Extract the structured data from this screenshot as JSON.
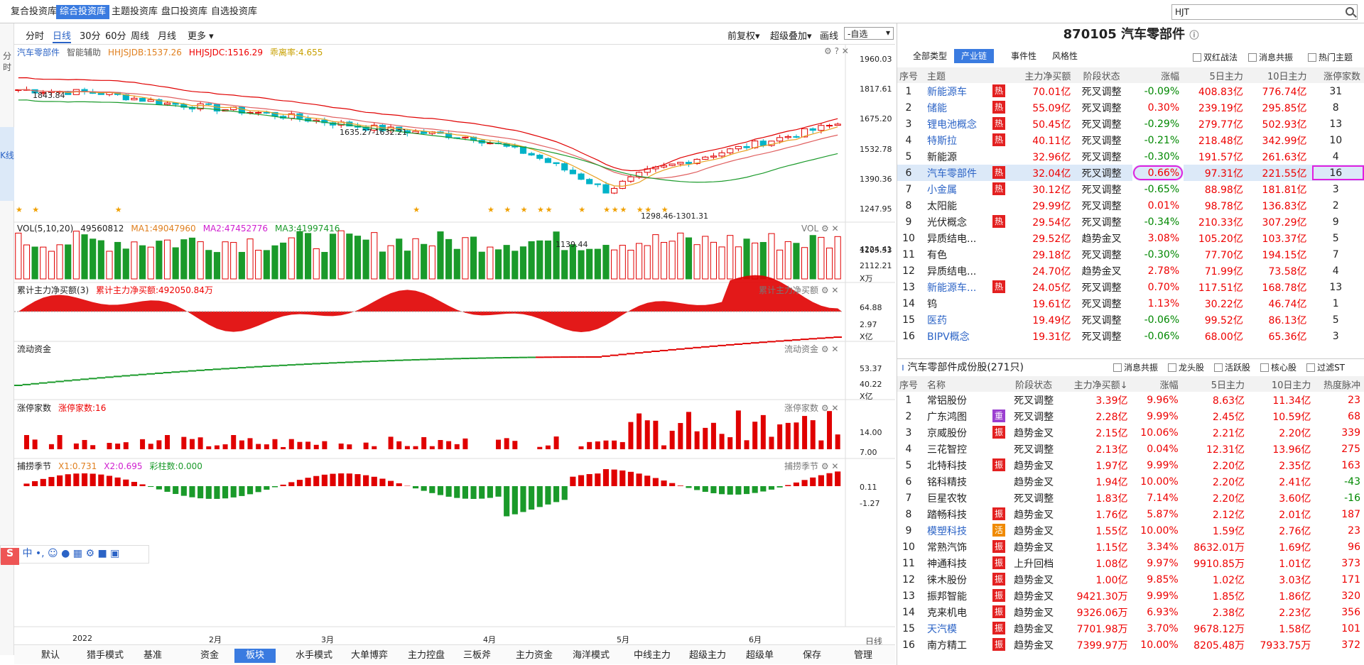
{
  "top_tabs": [
    "复合投资库",
    "综合投资库",
    "主题投资库",
    "盘口投资库",
    "自选投资库"
  ],
  "search_value": "HJT",
  "left_rail": {
    "fenshi": "分时",
    "kxian": "K线"
  },
  "period_tabs": [
    "分时",
    "日线",
    "30分",
    "60分",
    "周线",
    "月线",
    "更多"
  ],
  "period_right": [
    "前复权",
    "超级叠加",
    "画线",
    "-自选"
  ],
  "main_panel": {
    "name": "汽车零部件",
    "fuzhu": "智能辅助",
    "hhjsjdb": "HHJSJDB:1537.26",
    "hhjsjdc": "HHJSJDC:1516.29",
    "pianli": "乖离率:4.655",
    "yaxis": [
      "1960.03",
      "1817.61",
      "1675.20",
      "1532.78",
      "1390.36",
      "1247.95",
      "1105.53"
    ],
    "annot_high": "1843.84",
    "annot_mid": "1635.27-1632.21",
    "annot_low1": "1298.46-1301.31",
    "annot_low2": "1139.44"
  },
  "vol_panel": {
    "title": "VOL(5,10,20)",
    "v": "49560812",
    "ma1": "MA1:49047960",
    "ma2": "MA2:47452776",
    "ma3": "MA3:41997416",
    "y1": "4224.41",
    "y2": "2112.21",
    "unit": "X万",
    "tag": "VOL"
  },
  "cum_panel": {
    "title": "累计主力净买额(3)",
    "value": "累计主力净买额:492050.84万",
    "tag": "累计主力净买额",
    "y1": "64.88",
    "y2": "2.97",
    "unit": "X亿"
  },
  "flow_panel": {
    "title": "流动资金",
    "tag": "流动资金",
    "y1": "53.37",
    "y2": "40.22",
    "unit": "X亿"
  },
  "limit_panel": {
    "title": "涨停家数",
    "value": "涨停家数:16",
    "tag": "涨停家数",
    "y1": "14.00",
    "y2": "7.00"
  },
  "catch_panel": {
    "title": "捕捞季节",
    "x1": "X1:0.731",
    "x2": "X2:0.695",
    "bar": "彩柱数:0.000",
    "tag": "捕捞季节",
    "y1": "0.11",
    "y2": "-1.27"
  },
  "xaxis": [
    "2022",
    "2月",
    "3月",
    "4月",
    "5月",
    "6月"
  ],
  "bottom_tabs": [
    "默认",
    "猎手模式",
    "基准",
    "资金",
    "板块",
    "水手模式",
    "大单博弈",
    "主力控盘",
    "三板斧",
    "主力资金",
    "海洋模式",
    "中线主力",
    "超级主力",
    "超级单",
    "保存",
    "管理"
  ],
  "daily_label": "日线",
  "stock_title": "870105 汽车零部件",
  "info_tabs": [
    "全部类型",
    "产业链",
    "事件性",
    "风格性"
  ],
  "info_checks": [
    "双红战法",
    "消息共振",
    "热门主题"
  ],
  "theme_cols": [
    "序号",
    "主题",
    "主力净买额",
    "阶段状态",
    "涨幅",
    "5日主力",
    "10日主力",
    "涨停家数"
  ],
  "themes": [
    {
      "n": "1",
      "name": "新能源车",
      "hot": true,
      "link": true,
      "net": "70.01亿",
      "stage": "死叉调整",
      "chg": "-0.09%",
      "d5": "408.83亿",
      "d10": "776.74亿",
      "limit": "31"
    },
    {
      "n": "2",
      "name": "储能",
      "hot": true,
      "link": true,
      "net": "55.09亿",
      "stage": "死叉调整",
      "chg": "0.30%",
      "d5": "239.19亿",
      "d10": "295.85亿",
      "limit": "8"
    },
    {
      "n": "3",
      "name": "锂电池概念",
      "hot": true,
      "link": true,
      "net": "50.45亿",
      "stage": "死叉调整",
      "chg": "-0.29%",
      "d5": "279.77亿",
      "d10": "502.93亿",
      "limit": "13"
    },
    {
      "n": "4",
      "name": "特斯拉",
      "hot": true,
      "link": true,
      "net": "40.11亿",
      "stage": "死叉调整",
      "chg": "-0.21%",
      "d5": "218.48亿",
      "d10": "342.99亿",
      "limit": "10"
    },
    {
      "n": "5",
      "name": "新能源",
      "hot": false,
      "link": false,
      "net": "32.96亿",
      "stage": "死叉调整",
      "chg": "-0.30%",
      "d5": "191.57亿",
      "d10": "261.63亿",
      "limit": "4"
    },
    {
      "n": "6",
      "name": "汽车零部件",
      "hot": true,
      "link": true,
      "net": "32.04亿",
      "stage": "死叉调整",
      "chg": "0.66%",
      "d5": "97.31亿",
      "d10": "221.55亿",
      "limit": "16",
      "sel": true
    },
    {
      "n": "7",
      "name": "小金属",
      "hot": true,
      "link": true,
      "net": "30.12亿",
      "stage": "死叉调整",
      "chg": "-0.65%",
      "d5": "88.98亿",
      "d10": "181.81亿",
      "limit": "3"
    },
    {
      "n": "8",
      "name": "太阳能",
      "hot": false,
      "link": false,
      "net": "29.99亿",
      "stage": "死叉调整",
      "chg": "0.01%",
      "d5": "98.78亿",
      "d10": "136.83亿",
      "limit": "2"
    },
    {
      "n": "9",
      "name": "光伏概念",
      "hot": true,
      "link": false,
      "net": "29.54亿",
      "stage": "死叉调整",
      "chg": "-0.34%",
      "d5": "210.33亿",
      "d10": "307.29亿",
      "limit": "9"
    },
    {
      "n": "10",
      "name": "异质结电...",
      "hot": false,
      "link": false,
      "net": "29.52亿",
      "stage": "趋势金叉",
      "chg": "3.08%",
      "d5": "105.20亿",
      "d10": "103.37亿",
      "limit": "5"
    },
    {
      "n": "11",
      "name": "有色",
      "hot": false,
      "link": false,
      "net": "29.18亿",
      "stage": "死叉调整",
      "chg": "-0.30%",
      "d5": "77.70亿",
      "d10": "194.15亿",
      "limit": "7"
    },
    {
      "n": "12",
      "name": "异质结电...",
      "hot": false,
      "link": false,
      "net": "24.70亿",
      "stage": "趋势金叉",
      "chg": "2.78%",
      "d5": "71.99亿",
      "d10": "73.58亿",
      "limit": "4"
    },
    {
      "n": "13",
      "name": "新能源车...",
      "hot": true,
      "link": true,
      "net": "24.05亿",
      "stage": "死叉调整",
      "chg": "0.70%",
      "d5": "117.51亿",
      "d10": "168.78亿",
      "limit": "13"
    },
    {
      "n": "14",
      "name": "钨",
      "hot": false,
      "link": false,
      "net": "19.61亿",
      "stage": "死叉调整",
      "chg": "1.13%",
      "d5": "30.22亿",
      "d10": "46.74亿",
      "limit": "1"
    },
    {
      "n": "15",
      "name": "医药",
      "hot": false,
      "link": true,
      "net": "19.49亿",
      "stage": "死叉调整",
      "chg": "-0.06%",
      "d5": "99.52亿",
      "d10": "86.13亿",
      "limit": "5"
    },
    {
      "n": "16",
      "name": "BIPV概念",
      "hot": false,
      "link": true,
      "net": "19.31亿",
      "stage": "死叉调整",
      "chg": "-0.06%",
      "d5": "68.00亿",
      "d10": "65.36亿",
      "limit": "3"
    }
  ],
  "stock_section": {
    "title": "汽车零部件成份股(271只)",
    "checks": [
      "消息共振",
      "龙头股",
      "活跃股",
      "核心股",
      "过滤ST"
    ]
  },
  "stock_cols": [
    "序号",
    "名称",
    "阶段状态",
    "主力净买额↓",
    "涨幅",
    "5日主力",
    "10日主力",
    "热度脉冲"
  ],
  "stocks": [
    {
      "n": "1",
      "name": "常铝股份",
      "tag": "",
      "stage": "死叉调整",
      "net": "3.39亿",
      "chg": "9.96%",
      "d5": "8.63亿",
      "d10": "11.34亿",
      "heat": "23"
    },
    {
      "n": "2",
      "name": "广东鸿图",
      "tag": "重",
      "stage": "死叉调整",
      "net": "2.28亿",
      "chg": "9.99%",
      "d5": "2.45亿",
      "d10": "10.59亿",
      "heat": "68"
    },
    {
      "n": "3",
      "name": "京威股份",
      "tag": "振",
      "stage": "趋势金叉",
      "net": "2.15亿",
      "chg": "10.06%",
      "d5": "2.21亿",
      "d10": "2.20亿",
      "heat": "339"
    },
    {
      "n": "4",
      "name": "三花智控",
      "tag": "",
      "stage": "死叉调整",
      "net": "2.13亿",
      "chg": "0.04%",
      "d5": "12.31亿",
      "d10": "13.96亿",
      "heat": "275"
    },
    {
      "n": "5",
      "name": "北特科技",
      "tag": "振",
      "stage": "趋势金叉",
      "net": "1.97亿",
      "chg": "9.99%",
      "d5": "2.20亿",
      "d10": "2.35亿",
      "heat": "163"
    },
    {
      "n": "6",
      "name": "铭科精技",
      "tag": "",
      "stage": "趋势金叉",
      "net": "1.94亿",
      "chg": "10.00%",
      "d5": "2.20亿",
      "d10": "2.41亿",
      "heat": "-43"
    },
    {
      "n": "7",
      "name": "巨星农牧",
      "tag": "",
      "stage": "死叉调整",
      "net": "1.83亿",
      "chg": "7.14%",
      "d5": "2.20亿",
      "d10": "3.60亿",
      "heat": "-16"
    },
    {
      "n": "8",
      "name": "踏畅科技",
      "tag": "振",
      "stage": "趋势金叉",
      "net": "1.76亿",
      "chg": "5.87%",
      "d5": "2.12亿",
      "d10": "2.01亿",
      "heat": "187"
    },
    {
      "n": "9",
      "name": "模塑科技",
      "tag": "活",
      "stage": "趋势金叉",
      "net": "1.55亿",
      "chg": "10.00%",
      "d5": "1.59亿",
      "d10": "2.76亿",
      "heat": "23",
      "link": true
    },
    {
      "n": "10",
      "name": "常熟汽饰",
      "tag": "振",
      "stage": "趋势金叉",
      "net": "1.15亿",
      "chg": "3.34%",
      "d5": "8632.01万",
      "d10": "1.69亿",
      "heat": "96"
    },
    {
      "n": "11",
      "name": "神通科技",
      "tag": "振",
      "stage": "上升回档",
      "net": "1.08亿",
      "chg": "9.97%",
      "d5": "9910.85万",
      "d10": "1.01亿",
      "heat": "373"
    },
    {
      "n": "12",
      "name": "徕木股份",
      "tag": "振",
      "stage": "趋势金叉",
      "net": "1.00亿",
      "chg": "9.85%",
      "d5": "1.02亿",
      "d10": "3.03亿",
      "heat": "171"
    },
    {
      "n": "13",
      "name": "振邦智能",
      "tag": "振",
      "stage": "趋势金叉",
      "net": "9421.30万",
      "chg": "9.99%",
      "d5": "1.85亿",
      "d10": "1.86亿",
      "heat": "320"
    },
    {
      "n": "14",
      "name": "克来机电",
      "tag": "振",
      "stage": "趋势金叉",
      "net": "9326.06万",
      "chg": "6.93%",
      "d5": "2.38亿",
      "d10": "2.23亿",
      "heat": "356"
    },
    {
      "n": "15",
      "name": "天汽模",
      "tag": "振",
      "stage": "趋势金叉",
      "net": "7701.98万",
      "chg": "3.70%",
      "d5": "9678.12万",
      "d10": "1.58亿",
      "heat": "101",
      "link": true
    },
    {
      "n": "16",
      "name": "南方精工",
      "tag": "振",
      "stage": "趋势金叉",
      "net": "7399.97万",
      "chg": "10.00%",
      "d5": "8205.48万",
      "d10": "7933.75万",
      "heat": "372"
    }
  ],
  "colors": {
    "up": "#e00000",
    "down": "#00b3c8",
    "vol_down": "#1a9a2a",
    "accent": "#3a7be0",
    "hot": "#e32020",
    "ma_short": "#e8a020",
    "ma_mid": "#e06060",
    "ma_long": "#1a9a2a",
    "upper": "#e00000"
  }
}
